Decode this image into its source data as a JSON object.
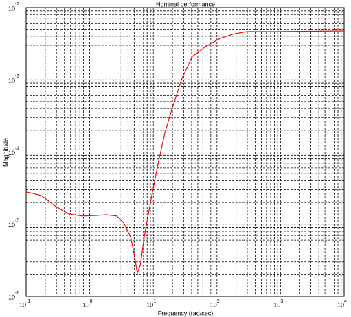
{
  "chart_data": {
    "type": "line",
    "title": "Nominal performance",
    "xlabel": "Frequency (rad/sec)",
    "ylabel": "Magnitude",
    "xscale": "log",
    "yscale": "log",
    "grid": true,
    "minor_grid": true,
    "xlim": [
      0.1,
      10000
    ],
    "ylim": [
      1e-06,
      0.01
    ],
    "xticks": [
      {
        "value": 0.1,
        "label": "10",
        "exponent": "-1"
      },
      {
        "value": 1,
        "label": "10",
        "exponent": "0"
      },
      {
        "value": 10,
        "label": "10",
        "exponent": "1"
      },
      {
        "value": 100,
        "label": "10",
        "exponent": "2"
      },
      {
        "value": 1000,
        "label": "10",
        "exponent": "3"
      },
      {
        "value": 10000,
        "label": "10",
        "exponent": "4"
      }
    ],
    "yticks": [
      {
        "value": 1e-06,
        "label": "10",
        "exponent": "-6"
      },
      {
        "value": 1e-05,
        "label": "10",
        "exponent": "-5"
      },
      {
        "value": 0.0001,
        "label": "10",
        "exponent": "-4"
      },
      {
        "value": 0.001,
        "label": "10",
        "exponent": "-3"
      },
      {
        "value": 0.01,
        "label": "10",
        "exponent": "-2"
      }
    ],
    "x": [
      0.1,
      0.173,
      0.284,
      0.47,
      0.77,
      1.26,
      1.8,
      2.66,
      3.4,
      4.4,
      5.1,
      5.6,
      6.3,
      7.2,
      9.2,
      11.8,
      15.1,
      19.4,
      28,
      40.9,
      67,
      110,
      181,
      296,
      800,
      10000
    ],
    "series": [
      {
        "color": "#ff0000",
        "values": [
          2.8e-05,
          2.5e-05,
          1.8e-05,
          1.38e-05,
          1.3e-05,
          1.32e-05,
          1.35e-05,
          1.3e-05,
          1.05e-05,
          6.7e-06,
          3.5e-06,
          2.1e-06,
          2.8e-06,
          6.7e-06,
          2.2e-05,
          6.7e-05,
          0.00018,
          0.00038,
          0.00103,
          0.0021,
          0.0029,
          0.0037,
          0.0043,
          0.00465,
          0.00465,
          0.00475
        ]
      }
    ]
  }
}
